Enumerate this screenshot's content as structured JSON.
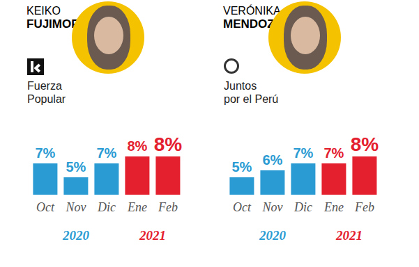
{
  "chart_data": [
    {
      "type": "bar",
      "title": "KEIKO FUJIMORI",
      "subtitle_lines": [
        "Fuerza",
        "Popular"
      ],
      "categories": [
        "Oct",
        "Nov",
        "Dic",
        "Ene",
        "Feb"
      ],
      "values": [
        7,
        5,
        7,
        8,
        8
      ],
      "value_labels": [
        "7%",
        "5%",
        "7%",
        "8%",
        "8%"
      ],
      "colors": [
        "#2b9cd3",
        "#2b9cd3",
        "#2b9cd3",
        "#e4202e",
        "#e4202e"
      ],
      "x_groups": [
        {
          "label": "2020",
          "from": "Oct",
          "to": "Dic"
        },
        {
          "label": "2021",
          "from": "Ene",
          "to": "Feb"
        }
      ],
      "ylim": [
        2.5,
        8
      ],
      "grid": false,
      "data_labels": true,
      "tick_labels": "x"
    },
    {
      "type": "bar",
      "title": "VERÓNIKA MENDOZA",
      "subtitle_lines": [
        "Juntos",
        "por el Perú"
      ],
      "categories": [
        "Oct",
        "Nov",
        "Dic",
        "Ene",
        "Feb"
      ],
      "values": [
        5,
        6,
        7,
        7,
        8
      ],
      "value_labels": [
        "5%",
        "6%",
        "7%",
        "7%",
        "8%"
      ],
      "colors": [
        "#2b9cd3",
        "#2b9cd3",
        "#2b9cd3",
        "#e4202e",
        "#e4202e"
      ],
      "x_groups": [
        {
          "label": "2020",
          "from": "Oct",
          "to": "Dic"
        },
        {
          "label": "2021",
          "from": "Ene",
          "to": "Feb"
        }
      ],
      "ylim": [
        2.5,
        8
      ],
      "grid": false,
      "data_labels": true,
      "tick_labels": "x"
    }
  ]
}
